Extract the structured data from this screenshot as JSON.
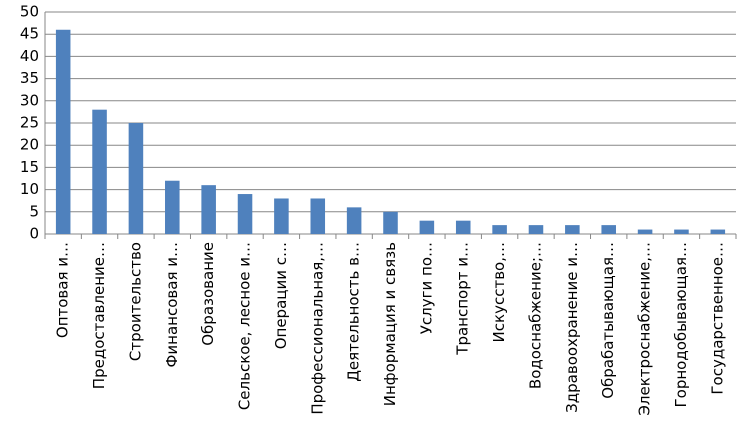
{
  "chart_data": {
    "type": "bar",
    "categories": [
      "Оптовая и…",
      "Предоставление…",
      "Строительство",
      "Финансовая и…",
      "Образование",
      "Сельское, лесное и…",
      "Операции с…",
      "Профессиональная,…",
      "Деятельность в…",
      "Информация  и связь",
      "Услуги по…",
      "Транспорт и…",
      "Искусство,…",
      "Водоснабжение;…",
      "Здравоохранение  и…",
      "Обрабатывающая…",
      "Электроснабжение,…",
      "Горнодобывающая…",
      "Государственное…"
    ],
    "values": [
      46,
      28,
      25,
      12,
      11,
      9,
      8,
      8,
      6,
      5,
      3,
      3,
      2,
      2,
      2,
      2,
      1,
      1,
      1
    ],
    "color": "#4f81bd",
    "ylim": [
      0,
      50
    ],
    "yticks": [
      0,
      5,
      10,
      15,
      20,
      25,
      30,
      35,
      40,
      45,
      50
    ],
    "grid": true
  }
}
